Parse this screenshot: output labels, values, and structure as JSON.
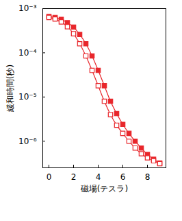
{
  "chart_data": {
    "type": "line",
    "x_label": "磁場(テスラ)",
    "y_label": "緩和時間(秒)",
    "log": "y",
    "x": [
      0,
      0.5,
      1,
      1.5,
      2,
      2.5,
      3,
      3.5,
      4,
      4.5,
      5,
      5.5,
      6,
      6.5,
      7,
      7.5,
      8,
      8.5,
      9
    ],
    "series": [
      {
        "color": "#e8262b",
        "marker": "square",
        "line_style": "solid",
        "values": [
          0.00066,
          0.00063,
          0.00057,
          0.00048,
          0.00038,
          0.00026,
          0.00016,
          8.5e-05,
          4e-05,
          1.8e-05,
          8e-06,
          4.2e-06,
          2.4e-06,
          1.5e-06,
          1e-06,
          7e-07,
          5e-07,
          3.9e-07,
          3.2e-07
        ]
      },
      {
        "color": "#e8262b",
        "marker": "square-open",
        "line_style": "solid",
        "values": [
          0.00063,
          0.00058,
          0.0005,
          0.00039,
          0.00027,
          0.00016,
          8.5e-05,
          4e-05,
          1.8e-05,
          8e-06,
          4e-06,
          2.3e-06,
          1.5e-06,
          1e-06,
          7e-07,
          5.2e-07,
          4.2e-07,
          3.6e-07,
          3.1e-07
        ]
      }
    ],
    "xlim": [
      -0.5,
      9.5
    ],
    "xticks": [
      0,
      2,
      4,
      6,
      8
    ],
    "ylim": [
      2.5e-07,
      0.001
    ],
    "yticks": [
      {
        "value": 0.001,
        "label": "10⁻³"
      },
      {
        "value": 0.0001,
        "label": "10⁻⁴"
      },
      {
        "value": 1e-05,
        "label": "10⁻⁵"
      },
      {
        "value": 1e-06,
        "label": "10⁻⁶"
      }
    ],
    "grid": false
  }
}
